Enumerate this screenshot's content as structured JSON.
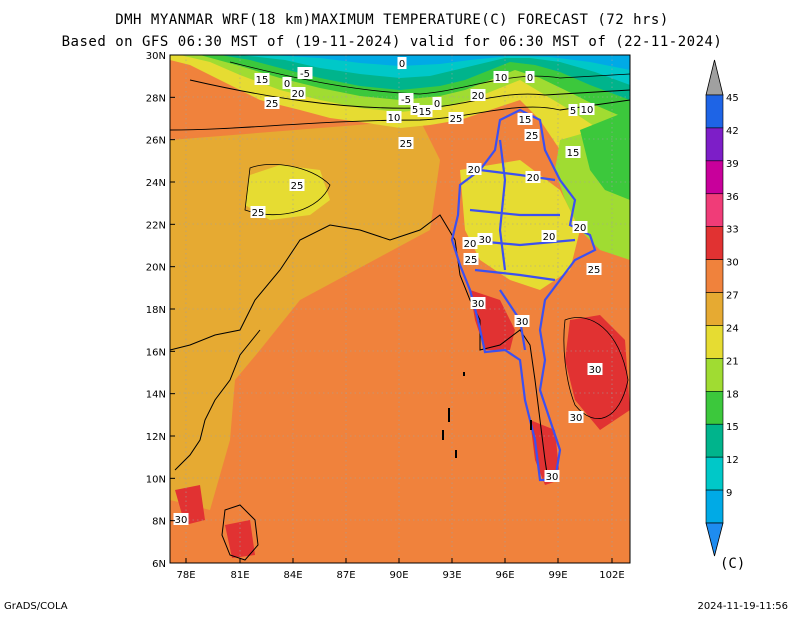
{
  "title_line1": "DMH MYANMAR WRF(18 km)MAXIMUM TEMPERATURE(C) FORECAST (72 hrs)",
  "title_line2": "Based on GFS 06:30 MST of (19-11-2024) valid for 06:30 MST of (22-11-2024)",
  "credit": "GrADS/COLA",
  "timestamp": "2024-11-19-11:56",
  "unit_label": "(C)",
  "lat_labels": [
    "30N",
    "28N",
    "26N",
    "24N",
    "22N",
    "20N",
    "18N",
    "16N",
    "14N",
    "12N",
    "10N",
    "8N",
    "6N"
  ],
  "lon_labels": [
    "78E",
    "81E",
    "84E",
    "87E",
    "90E",
    "93E",
    "96E",
    "99E",
    "102E"
  ],
  "colorbar": {
    "levels": [
      "45",
      "42",
      "39",
      "36",
      "33",
      "30",
      "27",
      "24",
      "21",
      "18",
      "15",
      "12",
      "9"
    ],
    "colors": [
      "#1e64e6",
      "#7d1ec8",
      "#c8009b",
      "#f03c78",
      "#e13232",
      "#f0823c",
      "#e6aa32",
      "#e6dc32",
      "#a0dc32",
      "#3cc83c",
      "#00b48c",
      "#00c8c8",
      "#00aae6"
    ],
    "top_cap_color": "#a0a0a0",
    "bottom_cap_color": "#1e8cf0"
  },
  "contour_labels": [
    {
      "t": "0"
    },
    {
      "t": "15"
    },
    {
      "t": "0"
    },
    {
      "t": "-5"
    },
    {
      "t": "20"
    },
    {
      "t": "25"
    },
    {
      "t": "0"
    },
    {
      "t": "10"
    },
    {
      "t": "0"
    },
    {
      "t": "20"
    },
    {
      "t": "-5"
    },
    {
      "t": "5"
    },
    {
      "t": "15"
    },
    {
      "t": "0"
    },
    {
      "t": "10"
    },
    {
      "t": "25"
    },
    {
      "t": "15"
    },
    {
      "t": "25"
    },
    {
      "t": "5"
    },
    {
      "t": "10"
    },
    {
      "t": "25"
    },
    {
      "t": "15"
    },
    {
      "t": "20"
    },
    {
      "t": "20"
    },
    {
      "t": "25"
    },
    {
      "t": "25"
    },
    {
      "t": "20"
    },
    {
      "t": "30"
    },
    {
      "t": "20"
    },
    {
      "t": "20"
    },
    {
      "t": "25"
    },
    {
      "t": "25"
    },
    {
      "t": "30"
    },
    {
      "t": "30"
    },
    {
      "t": "30"
    },
    {
      "t": "30"
    },
    {
      "t": "30"
    },
    {
      "t": "30"
    }
  ]
}
